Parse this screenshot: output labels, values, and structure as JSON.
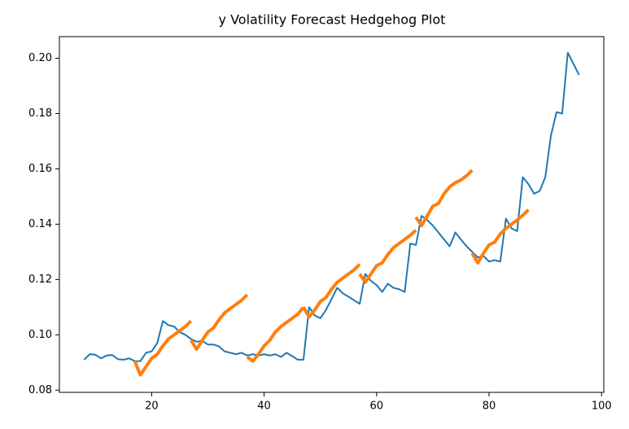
{
  "chart_data": {
    "type": "line",
    "title": "y Volatility Forecast Hedgehog Plot",
    "xlim": [
      3.6,
      100.4
    ],
    "ylim": [
      0.0792,
      0.2078
    ],
    "xticks": [
      20,
      40,
      60,
      80,
      100
    ],
    "yticks": [
      0.08,
      {
        "value": 0.1,
        "label": "0.10"
      },
      0.12,
      0.14,
      0.16,
      0.18,
      {
        "value": 0.2,
        "label": "0.20"
      }
    ],
    "series": [
      {
        "color": "#1f77b4",
        "width": 2,
        "x": [
          8,
          9,
          10,
          11,
          12,
          13,
          14,
          15,
          16,
          17,
          18,
          19,
          20,
          21,
          22,
          23,
          24,
          25,
          26,
          27,
          28,
          29,
          30,
          31,
          32,
          33,
          34,
          35,
          36,
          37,
          38,
          39,
          40,
          41,
          42,
          43,
          44,
          45,
          46,
          47,
          48,
          49,
          50,
          51,
          52,
          53,
          54,
          55,
          56,
          57,
          58,
          59,
          60,
          61,
          62,
          63,
          64,
          65,
          66,
          67,
          68,
          69,
          70,
          71,
          72,
          73,
          74,
          75,
          76,
          77,
          78,
          79,
          80,
          81,
          82,
          83,
          84,
          85,
          86,
          87,
          88,
          89,
          90,
          91,
          92,
          93,
          94,
          95,
          96
        ],
        "values": [
          0.091,
          0.093,
          0.0928,
          0.0915,
          0.0925,
          0.0927,
          0.0912,
          0.091,
          0.0915,
          0.0905,
          0.0905,
          0.0935,
          0.094,
          0.097,
          0.105,
          0.1035,
          0.103,
          0.101,
          0.1,
          0.0985,
          0.0975,
          0.0978,
          0.0965,
          0.0965,
          0.0958,
          0.094,
          0.0935,
          0.093,
          0.0935,
          0.0925,
          0.093,
          0.0925,
          0.093,
          0.0925,
          0.093,
          0.092,
          0.0935,
          0.0923,
          0.091,
          0.091,
          0.11,
          0.107,
          0.106,
          0.109,
          0.113,
          0.117,
          0.115,
          0.1138,
          0.1125,
          0.1112,
          0.122,
          0.1195,
          0.118,
          0.1155,
          0.1185,
          0.117,
          0.1165,
          0.1155,
          0.133,
          0.1325,
          0.143,
          0.1415,
          0.1395,
          0.137,
          0.1345,
          0.132,
          0.137,
          0.1345,
          0.132,
          0.13,
          0.128,
          0.1285,
          0.1265,
          0.127,
          0.1265,
          0.142,
          0.1385,
          0.1375,
          0.157,
          0.1545,
          0.151,
          0.152,
          0.157,
          0.172,
          0.1805,
          0.18,
          0.202,
          0.198,
          0.194
        ]
      },
      {
        "color": "#ff7f0e",
        "width": 4,
        "x": [
          17,
          18,
          19,
          20,
          21,
          22,
          23,
          24,
          25,
          26,
          27
        ],
        "values": [
          0.0905,
          0.0855,
          0.0885,
          0.0915,
          0.093,
          0.096,
          0.0985,
          0.1,
          0.1015,
          0.103,
          0.105
        ]
      },
      {
        "color": "#ff7f0e",
        "width": 4,
        "x": [
          27,
          28,
          29,
          30,
          31,
          32,
          33,
          34,
          35,
          36,
          37
        ],
        "values": [
          0.098,
          0.0948,
          0.098,
          0.101,
          0.1025,
          0.1055,
          0.108,
          0.1095,
          0.111,
          0.1125,
          0.1145
        ]
      },
      {
        "color": "#ff7f0e",
        "width": 4,
        "x": [
          37,
          38,
          39,
          40,
          41,
          42,
          43,
          44,
          45,
          46,
          47
        ],
        "values": [
          0.092,
          0.0905,
          0.093,
          0.096,
          0.098,
          0.101,
          0.103,
          0.1045,
          0.106,
          0.1075,
          0.11
        ]
      },
      {
        "color": "#ff7f0e",
        "width": 4,
        "x": [
          47,
          48,
          49,
          50,
          51,
          52,
          53,
          54,
          55,
          56,
          57
        ],
        "values": [
          0.11,
          0.1065,
          0.109,
          0.112,
          0.1135,
          0.1165,
          0.119,
          0.1205,
          0.122,
          0.1235,
          0.1255
        ]
      },
      {
        "color": "#ff7f0e",
        "width": 4,
        "x": [
          57,
          58,
          59,
          60,
          61,
          62,
          63,
          64,
          65,
          66,
          67
        ],
        "values": [
          0.122,
          0.119,
          0.122,
          0.125,
          0.126,
          0.129,
          0.1315,
          0.133,
          0.1345,
          0.136,
          0.1378
        ]
      },
      {
        "color": "#ff7f0e",
        "width": 4,
        "x": [
          67,
          68,
          69,
          70,
          71,
          72,
          73,
          74,
          75,
          76,
          77
        ],
        "values": [
          0.1425,
          0.1395,
          0.143,
          0.1465,
          0.1475,
          0.151,
          0.1535,
          0.155,
          0.156,
          0.1575,
          0.1595
        ]
      },
      {
        "color": "#ff7f0e",
        "width": 4,
        "x": [
          77,
          78,
          79,
          80,
          81,
          82,
          83,
          84,
          85,
          86,
          87
        ],
        "values": [
          0.1295,
          0.126,
          0.1295,
          0.1325,
          0.1335,
          0.1365,
          0.1385,
          0.14,
          0.1415,
          0.1432,
          0.1452
        ]
      }
    ]
  }
}
